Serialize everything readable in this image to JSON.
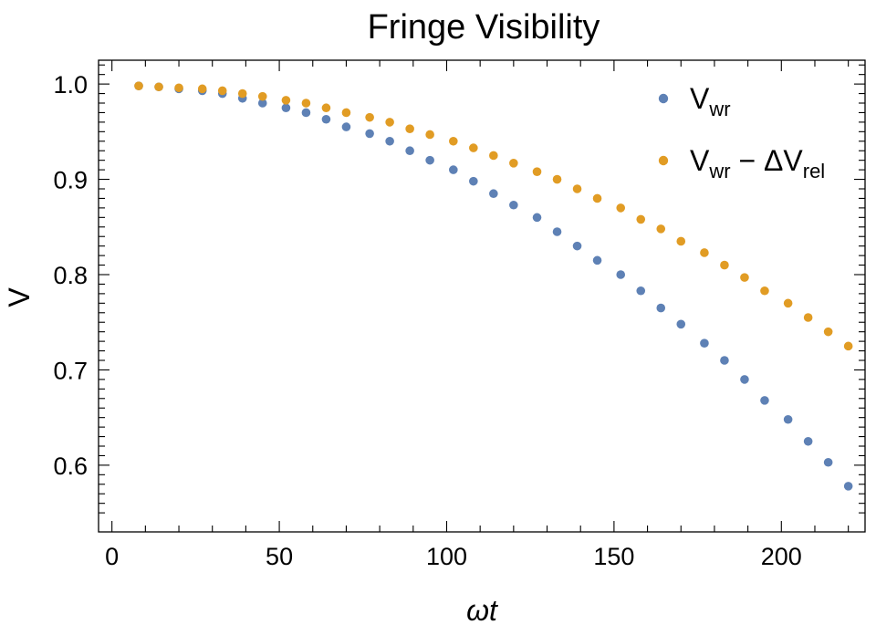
{
  "chart_data": {
    "type": "scatter",
    "title": "Fringe Visibility",
    "xlabel": "ωt",
    "ylabel": "V",
    "xlim": [
      -4,
      225
    ],
    "ylim": [
      0.53,
      1.025
    ],
    "x_ticks": [
      0,
      50,
      100,
      150,
      200
    ],
    "x_tick_labels": [
      "0",
      "50",
      "100",
      "150",
      "200"
    ],
    "y_ticks": [
      0.6,
      0.7,
      0.8,
      0.9,
      1.0
    ],
    "y_tick_labels": [
      "0.6",
      "0.7",
      "0.8",
      "0.9",
      "1.0"
    ],
    "grid": false,
    "legend_position": "top-right",
    "series": [
      {
        "name": "V_wr",
        "legend_main": "V",
        "legend_sub": "wr",
        "legend_tail": "",
        "legend_tail_sub": "",
        "color": "#5E81B5",
        "x": [
          8,
          14,
          20,
          27,
          33,
          39,
          45,
          52,
          58,
          64,
          70,
          77,
          83,
          89,
          95,
          102,
          108,
          114,
          120,
          127,
          133,
          139,
          145,
          152,
          158,
          164,
          170,
          177,
          183,
          189,
          195,
          202,
          208,
          214,
          220
        ],
        "y": [
          0.998,
          0.997,
          0.995,
          0.993,
          0.99,
          0.985,
          0.98,
          0.975,
          0.97,
          0.963,
          0.955,
          0.948,
          0.94,
          0.93,
          0.92,
          0.91,
          0.898,
          0.885,
          0.873,
          0.86,
          0.845,
          0.83,
          0.815,
          0.8,
          0.783,
          0.765,
          0.748,
          0.728,
          0.71,
          0.69,
          0.668,
          0.648,
          0.625,
          0.603,
          0.578
        ]
      },
      {
        "name": "V_wr − ΔV_rel",
        "legend_main": "V",
        "legend_sub": "wr",
        "legend_tail": " − ΔV",
        "legend_tail_sub": "rel",
        "color": "#E19C24",
        "x": [
          8,
          14,
          20,
          27,
          33,
          39,
          45,
          52,
          58,
          64,
          70,
          77,
          83,
          89,
          95,
          102,
          108,
          114,
          120,
          127,
          133,
          139,
          145,
          152,
          158,
          164,
          170,
          177,
          183,
          189,
          195,
          202,
          208,
          214,
          220
        ],
        "y": [
          0.998,
          0.997,
          0.996,
          0.995,
          0.993,
          0.99,
          0.987,
          0.983,
          0.98,
          0.975,
          0.97,
          0.965,
          0.96,
          0.953,
          0.947,
          0.94,
          0.933,
          0.925,
          0.917,
          0.908,
          0.9,
          0.89,
          0.88,
          0.87,
          0.858,
          0.848,
          0.835,
          0.823,
          0.81,
          0.797,
          0.783,
          0.77,
          0.755,
          0.74,
          0.725
        ]
      }
    ]
  }
}
